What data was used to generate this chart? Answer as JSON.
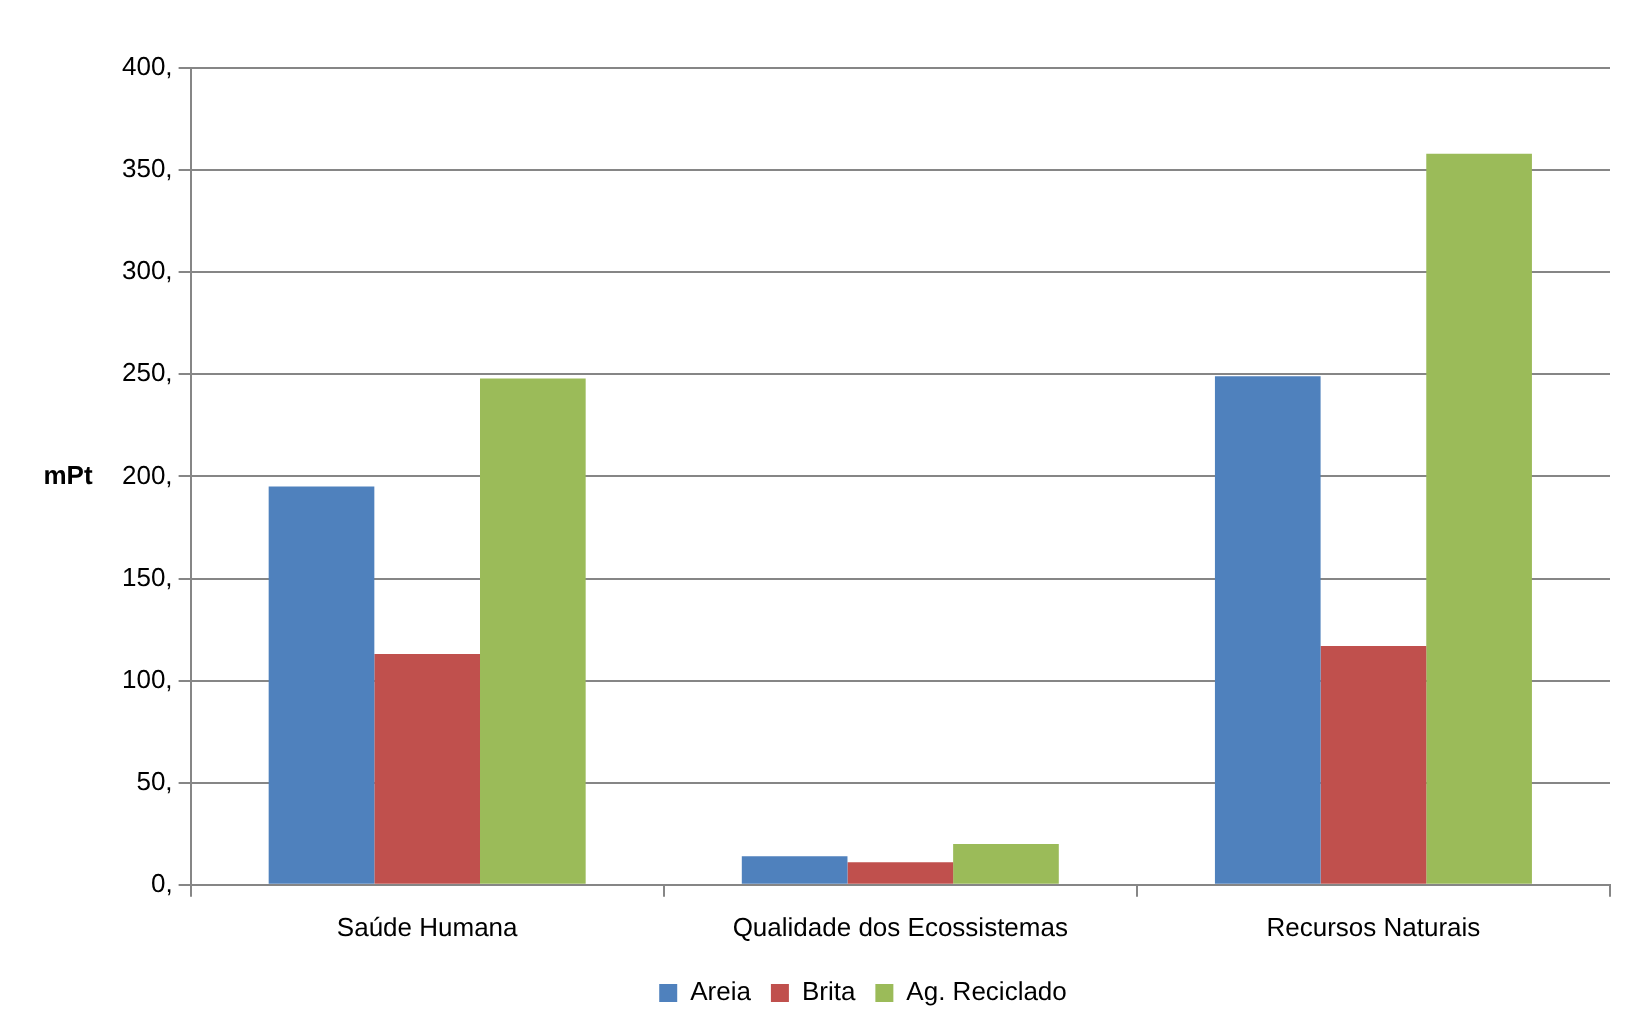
{
  "chart_data": {
    "type": "bar",
    "ylabel": "mPt",
    "categories": [
      "Saúde Humana",
      "Qualidade dos Ecossistemas",
      "Recursos Naturais"
    ],
    "series": [
      {
        "name": "Areia",
        "color": "#4f81bd",
        "values": [
          195,
          14,
          249
        ]
      },
      {
        "name": "Brita",
        "color": "#c0504d",
        "values": [
          113,
          11,
          117
        ]
      },
      {
        "name": "Ag. Reciclado",
        "color": "#9bbb59",
        "values": [
          248,
          20,
          358
        ]
      }
    ],
    "ylim": [
      0,
      400
    ],
    "yticks": [
      {
        "value": 0,
        "label": "0,"
      },
      {
        "value": 50,
        "label": "50,"
      },
      {
        "value": 100,
        "label": "100,"
      },
      {
        "value": 150,
        "label": "150,"
      },
      {
        "value": 200,
        "label": "200,"
      },
      {
        "value": 250,
        "label": "250,"
      },
      {
        "value": 300,
        "label": "300,"
      },
      {
        "value": 350,
        "label": "350,"
      },
      {
        "value": 400,
        "label": "400,"
      }
    ],
    "grid": "y",
    "legend": "bottom"
  }
}
